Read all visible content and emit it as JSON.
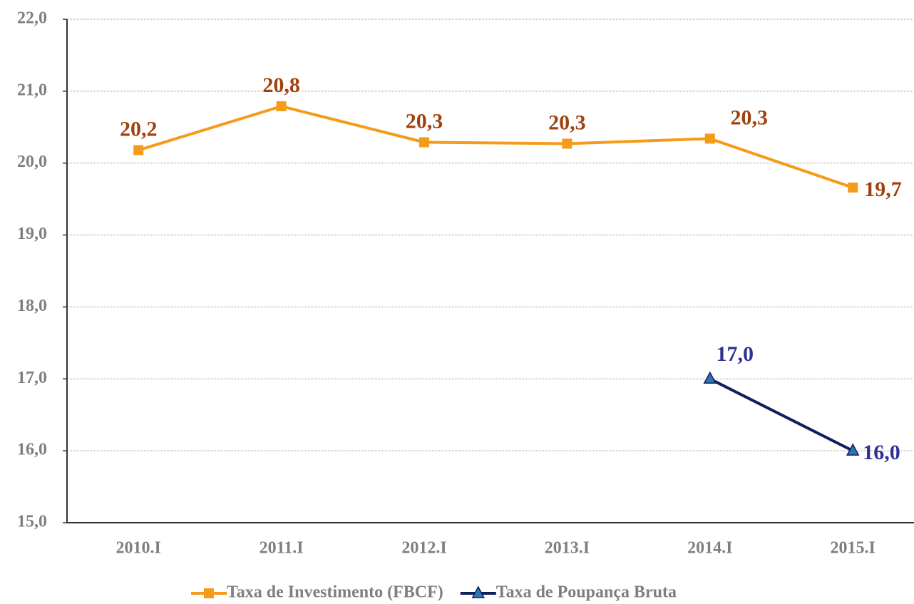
{
  "chart_data": {
    "type": "line",
    "categories": [
      "2010.I",
      "2011.I",
      "2012.I",
      "2013.I",
      "2014.I",
      "2015.I"
    ],
    "series": [
      {
        "name": "Taxa de Investimento (FBCF)",
        "color": "#f59b1a",
        "label_color": "#a0410f",
        "marker": "square",
        "values": [
          20.18,
          20.79,
          20.29,
          20.27,
          20.34,
          19.66
        ],
        "value_labels": [
          "20,2",
          "20,8",
          "20,3",
          "20,3",
          "20,3",
          "19,7"
        ]
      },
      {
        "name": "Taxa de Poupança Bruta",
        "color": "#0d1f5c",
        "marker_color": "#2e75b6",
        "label_color": "#2e3192",
        "marker": "triangle",
        "values": [
          null,
          null,
          null,
          null,
          17.0,
          16.0
        ],
        "value_labels": [
          null,
          null,
          null,
          null,
          "17,0",
          "16,0"
        ]
      }
    ],
    "ylim": [
      15,
      22
    ],
    "yticks": [
      {
        "value": 15,
        "label": "15,0"
      },
      {
        "value": 16,
        "label": "16,0"
      },
      {
        "value": 17,
        "label": "17,0"
      },
      {
        "value": 18,
        "label": "18,0"
      },
      {
        "value": 19,
        "label": "19,0"
      },
      {
        "value": 20,
        "label": "20,0"
      },
      {
        "value": 21,
        "label": "21,0"
      },
      {
        "value": 22,
        "label": "22,0"
      }
    ],
    "grid": true,
    "legend": "bottom"
  }
}
